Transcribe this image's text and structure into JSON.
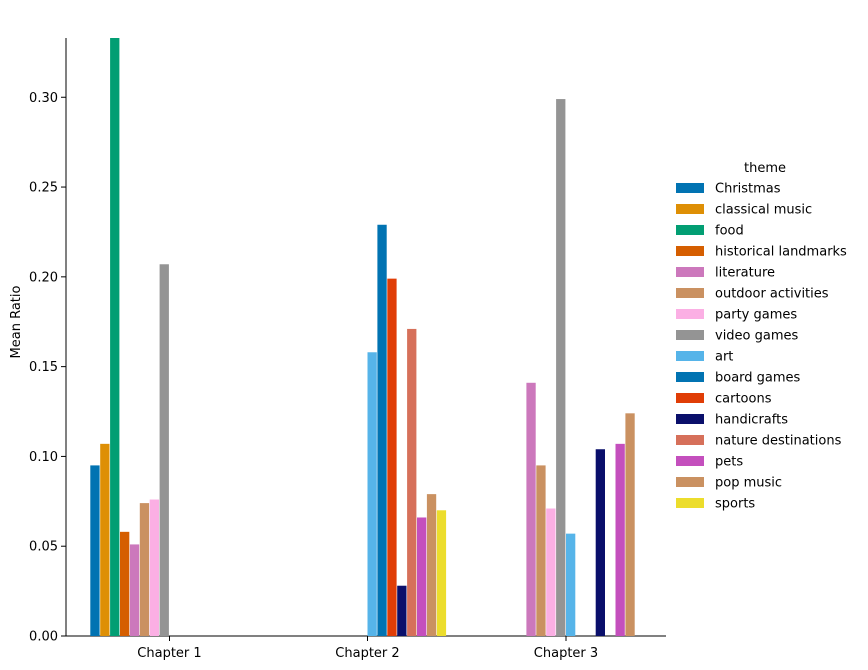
{
  "chart_data": {
    "type": "bar",
    "ylabel": "Mean Ratio",
    "xlabel": "",
    "ylim": [
      0,
      0.333
    ],
    "yticks": [
      0.0,
      0.05,
      0.1,
      0.15,
      0.2,
      0.25,
      0.3
    ],
    "ytick_labels": [
      "0.00",
      "0.05",
      "0.10",
      "0.15",
      "0.20",
      "0.25",
      "0.30"
    ],
    "grid": false,
    "legend": {
      "title": "theme",
      "placement": "right"
    },
    "categories": [
      "Chapter 1",
      "Chapter 2",
      "Chapter 3"
    ],
    "series": [
      {
        "name": "Christmas",
        "color": "#0173b2",
        "values": [
          0.095,
          null,
          null
        ]
      },
      {
        "name": "classical music",
        "color": "#de8f05",
        "values": [
          0.107,
          null,
          null
        ]
      },
      {
        "name": "food",
        "color": "#029e73",
        "values": [
          0.333,
          null,
          null
        ]
      },
      {
        "name": "historical landmarks",
        "color": "#d55e00",
        "values": [
          0.058,
          null,
          null
        ]
      },
      {
        "name": "literature",
        "color": "#cc78bc",
        "values": [
          0.051,
          null,
          0.141
        ]
      },
      {
        "name": "outdoor activities",
        "color": "#ca9161",
        "values": [
          0.074,
          null,
          0.095
        ]
      },
      {
        "name": "party games",
        "color": "#fbafe4",
        "values": [
          0.076,
          null,
          0.071
        ]
      },
      {
        "name": "video games",
        "color": "#949494",
        "values": [
          0.207,
          null,
          0.299
        ]
      },
      {
        "name": "art",
        "color": "#56b4e9",
        "values": [
          null,
          0.158,
          0.057
        ]
      },
      {
        "name": "board games",
        "color": "#0173b2",
        "values": [
          null,
          0.229,
          null
        ]
      },
      {
        "name": "cartoons",
        "color": "#e03d06",
        "values": [
          null,
          0.199,
          null
        ]
      },
      {
        "name": "handicrafts",
        "color": "#0a0f6b",
        "values": [
          null,
          0.028,
          0.104
        ]
      },
      {
        "name": "nature destinations",
        "color": "#d6705a",
        "values": [
          null,
          0.171,
          null
        ]
      },
      {
        "name": "pets",
        "color": "#c44fbd",
        "values": [
          null,
          0.066,
          0.107
        ]
      },
      {
        "name": "pop music",
        "color": "#ca9161",
        "values": [
          null,
          0.079,
          0.124
        ]
      },
      {
        "name": "sports",
        "color": "#ecdd2c",
        "values": [
          null,
          0.07,
          null
        ]
      }
    ]
  }
}
